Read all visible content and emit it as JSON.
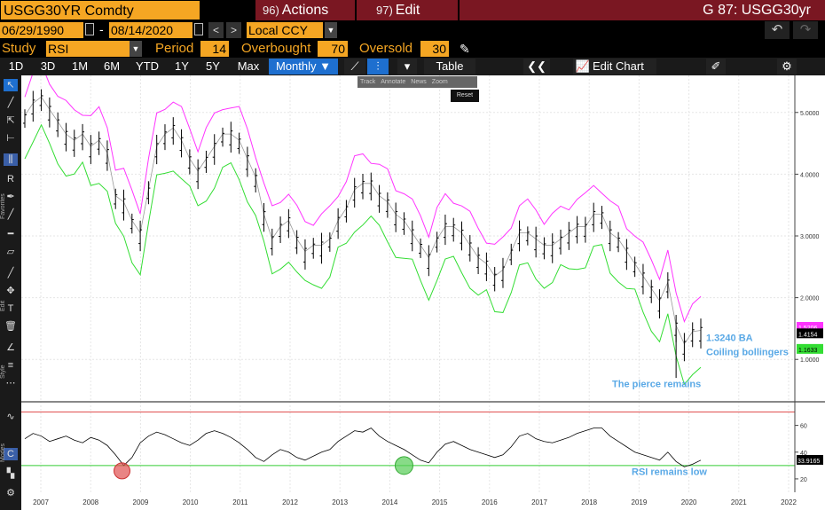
{
  "header": {
    "ticker": "USGG30YR Comdty",
    "actions_num": "96)",
    "actions_label": "Actions",
    "edit_num": "97)",
    "edit_label": "Edit",
    "title": "G 87: USGG30yr"
  },
  "range": {
    "start_date": "06/29/1990",
    "sep": "-",
    "end_date": "08/14/2020",
    "prev": "<",
    "next": ">",
    "currency": "Local CCY"
  },
  "study": {
    "label": "Study",
    "value": "RSI",
    "period_label": "Period",
    "period_value": "14",
    "overbought_label": "Overbought",
    "overbought_value": "70",
    "oversold_label": "Oversold",
    "oversold_value": "30"
  },
  "toolbar": {
    "periods": [
      "1D",
      "3D",
      "1M",
      "6M",
      "YTD",
      "1Y",
      "5Y",
      "Max"
    ],
    "frequency": "Monthly ▼",
    "table_label": "Table",
    "collapse": "❮❮",
    "edit_chart_label": "Edit Chart"
  },
  "annotbar": {
    "items": [
      "Track",
      "Annotate",
      "News",
      "Zoom"
    ],
    "reset": "Reset"
  },
  "sidebar": {
    "labels": {
      "favorites": "Favorites",
      "edit": "Edit",
      "style": "Style",
      "modes": "Modes"
    }
  },
  "colors": {
    "ticker_bg": "#f5a623",
    "red_bar": "#7a1722",
    "active_blue": "#1e6fcf",
    "upper_band": "#ff33ff",
    "lower_band": "#33dd33",
    "annotation_text": "#5aa9e6",
    "overbought_line": "#e05050",
    "oversold_line": "#33cc33"
  },
  "chart_data": [
    {
      "type": "line",
      "y_ticks": [
        "5.0000",
        "4.0000",
        "3.0000",
        "2.0000",
        "1.0000"
      ],
      "ylim": [
        0.4,
        5.6
      ],
      "x_ticks": [
        "2007",
        "2008",
        "2009",
        "2010",
        "2011",
        "2012",
        "2013",
        "2014",
        "2015",
        "2016",
        "2017",
        "2018",
        "2019",
        "2020",
        "2021",
        "2022"
      ],
      "price_labels": {
        "upper": "1.5206",
        "last": "1.4154",
        "lower": "1.1633"
      },
      "annotations": [
        "1.3240  BA",
        "Coiling bollingers",
        "The pierce remains"
      ],
      "series": [
        {
          "values": [
            4.9,
            5.1,
            5.2,
            5.0,
            4.8,
            4.6,
            4.5,
            4.6,
            4.4,
            4.5,
            4.3,
            3.6,
            3.5,
            3.2,
            3.0,
            3.7,
            4.4,
            4.6,
            4.7,
            4.5,
            4.2,
            4.0,
            4.2,
            4.4,
            4.6,
            4.6,
            4.5,
            4.2,
            3.9,
            3.3,
            2.9,
            3.1,
            3.2,
            2.9,
            2.7,
            2.8,
            2.8,
            2.9,
            3.2,
            3.4,
            3.7,
            3.8,
            3.8,
            3.6,
            3.5,
            3.3,
            3.2,
            3.0,
            2.8,
            2.6,
            2.9,
            3.1,
            3.1,
            3.0,
            2.8,
            2.6,
            2.5,
            2.3,
            2.4,
            2.7,
            3.0,
            3.0,
            2.9,
            2.8,
            2.8,
            2.9,
            3.0,
            3.1,
            3.1,
            3.3,
            3.3,
            3.0,
            2.9,
            2.7,
            2.5,
            2.3,
            2.1,
            1.9,
            2.2,
            1.5,
            1.2,
            1.4,
            1.42
          ]
        }
      ]
    },
    {
      "type": "line",
      "y_ticks": [
        "60",
        "40",
        "20"
      ],
      "ylim": [
        10,
        75
      ],
      "overbought": 70,
      "oversold": 30,
      "last_label": "33.9165",
      "annotations": [
        "RSI remains low"
      ],
      "series": [
        {
          "values": [
            50,
            54,
            52,
            48,
            50,
            52,
            49,
            47,
            51,
            49,
            45,
            38,
            30,
            36,
            47,
            52,
            55,
            53,
            50,
            47,
            45,
            49,
            54,
            56,
            54,
            51,
            47,
            42,
            36,
            33,
            38,
            42,
            40,
            36,
            34,
            37,
            40,
            42,
            48,
            52,
            56,
            55,
            58,
            52,
            48,
            45,
            42,
            38,
            34,
            32,
            40,
            46,
            48,
            45,
            42,
            40,
            38,
            36,
            38,
            44,
            52,
            54,
            50,
            48,
            47,
            49,
            51,
            54,
            56,
            58,
            58,
            52,
            48,
            44,
            40,
            38,
            36,
            34,
            40,
            33,
            29,
            31,
            34
          ]
        }
      ]
    }
  ]
}
